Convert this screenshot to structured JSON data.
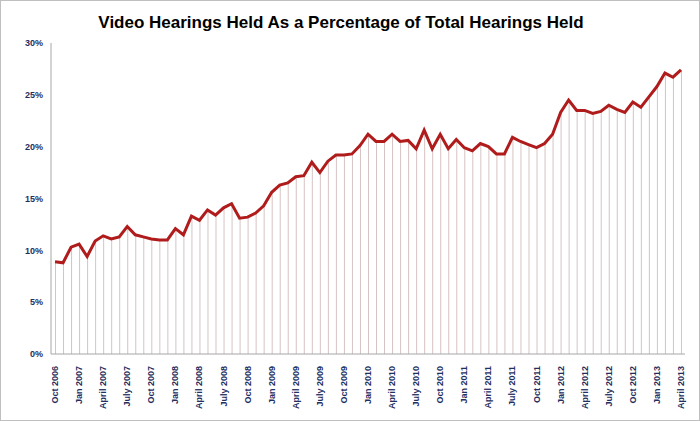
{
  "chart_data": {
    "type": "line",
    "title": "Video Hearings Held As a Percentage of Total Hearings Held",
    "categories": [
      "Oct 2006",
      null,
      null,
      "Jan 2007",
      null,
      null,
      "April 2007",
      null,
      null,
      "July 2007",
      null,
      null,
      "Oct 2007",
      null,
      null,
      "Jan 2008",
      null,
      null,
      "April 2008",
      null,
      null,
      "July 2008",
      null,
      null,
      "Oct 2008",
      null,
      null,
      "Jan 2009",
      null,
      null,
      "April 2009",
      null,
      null,
      "July 2009",
      null,
      null,
      "Oct 2009",
      null,
      null,
      "Jan 2010",
      null,
      null,
      "April 2010",
      null,
      null,
      "July 2010",
      null,
      null,
      "Oct 2010",
      null,
      null,
      "Jan 2011",
      null,
      null,
      "April 2011",
      null,
      null,
      "July 2011",
      null,
      null,
      "Oct 2011",
      null,
      null,
      "Jan 2012",
      null,
      null,
      "April 2012",
      null,
      null,
      "July 2012",
      null,
      null,
      "Oct 2012",
      null,
      null,
      "Jan 2013",
      null,
      null,
      "April 2013"
    ],
    "values": [
      8.9,
      8.8,
      10.3,
      10.6,
      9.4,
      10.9,
      11.4,
      11.1,
      11.3,
      12.3,
      11.5,
      11.3,
      11.1,
      11.0,
      11.0,
      12.1,
      11.5,
      13.3,
      12.9,
      13.9,
      13.4,
      14.1,
      14.5,
      13.1,
      13.2,
      13.6,
      14.3,
      15.6,
      16.3,
      16.5,
      17.1,
      17.2,
      18.5,
      17.5,
      18.6,
      19.2,
      19.2,
      19.3,
      20.1,
      21.2,
      20.5,
      20.5,
      21.2,
      20.5,
      20.6,
      19.8,
      21.6,
      19.8,
      21.2,
      19.8,
      20.7,
      19.9,
      19.6,
      20.3,
      20.0,
      19.3,
      19.3,
      20.9,
      20.5,
      20.2,
      19.9,
      20.3,
      21.2,
      23.3,
      24.5,
      23.5,
      23.5,
      23.2,
      23.4,
      24.0,
      23.6,
      23.3,
      24.3,
      23.8,
      24.8,
      25.8,
      27.1,
      26.7,
      27.4
    ],
    "color": "#b01c1c",
    "ylim": [
      0,
      30
    ],
    "yticks": [
      {
        "value": 0,
        "label": "0%"
      },
      {
        "value": 5,
        "label": "5%"
      },
      {
        "value": 10,
        "label": "10%"
      },
      {
        "value": 15,
        "label": "15%"
      },
      {
        "value": 20,
        "label": "20%"
      },
      {
        "value": 25,
        "label": "25%"
      },
      {
        "value": 30,
        "label": "30%"
      }
    ],
    "grid": false
  }
}
